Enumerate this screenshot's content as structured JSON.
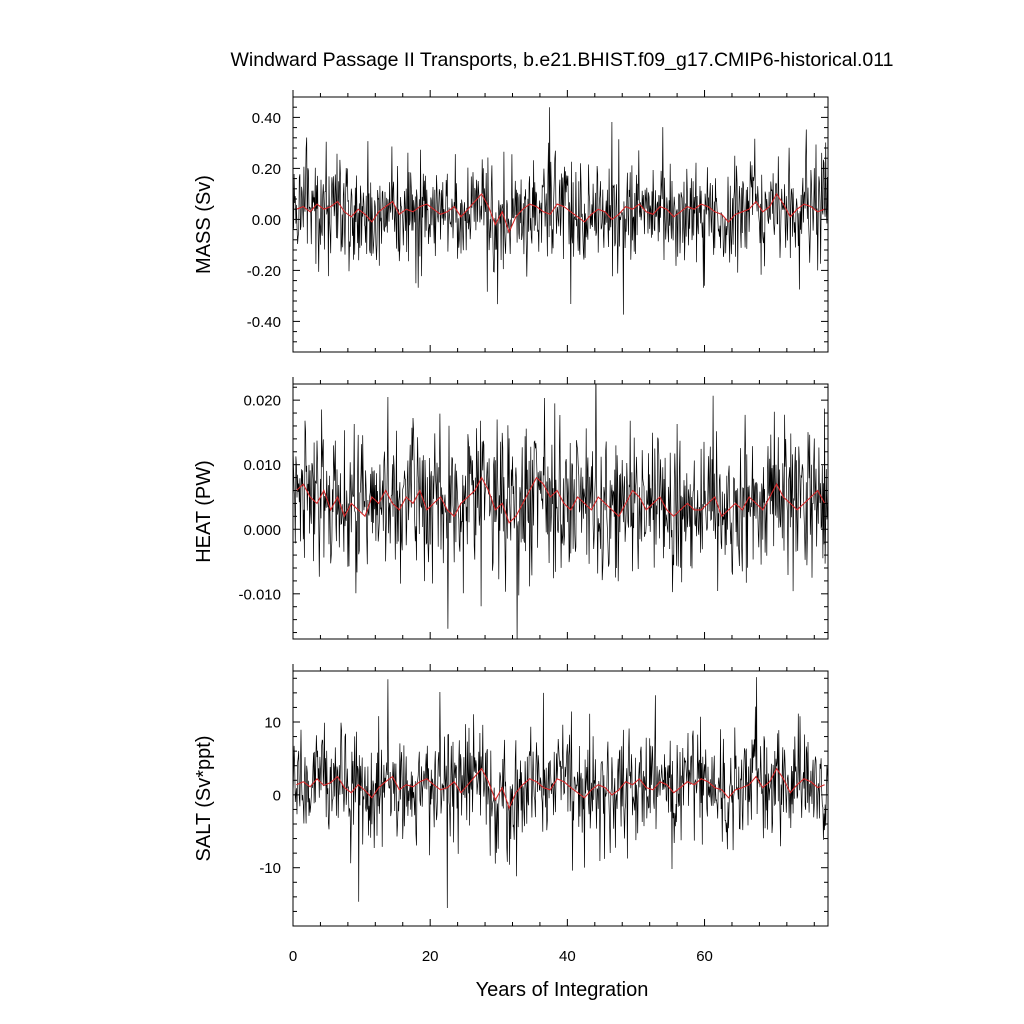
{
  "chart_data": {
    "type": "line",
    "title": "Windward Passage II Transports, b.e21.BHIST.f09_g17.CMIP6-historical.011",
    "xlabel": "Years of Integration",
    "xlim": [
      0,
      78
    ],
    "xticks": [
      0,
      20,
      40,
      60
    ],
    "xtick_labels": [
      "0",
      "20",
      "40",
      "60"
    ],
    "colors": {
      "monthly": "#000000",
      "annual": "#d62728"
    },
    "panels": [
      {
        "ylabel": "MASS (Sv)",
        "ylim": [
          -0.52,
          0.48
        ],
        "yticks": [
          0.4,
          0.2,
          0.0,
          -0.2,
          -0.4
        ],
        "ytick_labels": [
          "0.40",
          "0.20",
          "0.00",
          "-0.20",
          "-0.40"
        ],
        "monthly_mean": 0.03,
        "monthly_sd": 0.1,
        "annual_values": [
          0.04,
          0.05,
          0.03,
          0.06,
          0.04,
          0.05,
          0.07,
          0.03,
          0.01,
          0.04,
          0.02,
          -0.01,
          0.03,
          0.05,
          0.07,
          0.02,
          0.04,
          0.03,
          0.05,
          0.06,
          0.04,
          0.02,
          0.03,
          0.05,
          0.01,
          0.04,
          0.07,
          0.1,
          0.05,
          -0.02,
          0.03,
          -0.05,
          0.01,
          0.04,
          0.06,
          0.05,
          0.03,
          0.02,
          0.06,
          0.05,
          0.03,
          0.01,
          -0.01,
          0.02,
          0.04,
          0.03,
          0.0,
          0.02,
          0.05,
          0.04,
          0.06,
          0.03,
          0.02,
          0.05,
          0.04,
          0.01,
          0.03,
          0.05,
          0.04,
          0.06,
          0.05,
          0.03,
          0.02,
          -0.01,
          0.02,
          0.03,
          0.04,
          0.07,
          0.03,
          0.05,
          0.1,
          0.06,
          0.01,
          0.04,
          0.06,
          0.05,
          0.03,
          0.04
        ]
      },
      {
        "ylabel": "HEAT (PW)",
        "ylim": [
          -0.017,
          0.0225
        ],
        "yticks": [
          0.02,
          0.01,
          0.0,
          -0.01
        ],
        "ytick_labels": [
          "0.020",
          "0.010",
          "0.000",
          "-0.010"
        ],
        "monthly_mean": 0.004,
        "monthly_sd": 0.0055,
        "annual_values": [
          0.006,
          0.007,
          0.005,
          0.004,
          0.006,
          0.003,
          0.005,
          0.002,
          0.004,
          0.003,
          0.002,
          0.005,
          0.004,
          0.006,
          0.004,
          0.003,
          0.005,
          0.004,
          0.006,
          0.003,
          0.004,
          0.005,
          0.003,
          0.002,
          0.004,
          0.005,
          0.006,
          0.008,
          0.006,
          0.003,
          0.004,
          0.001,
          0.002,
          0.004,
          0.006,
          0.008,
          0.007,
          0.005,
          0.006,
          0.004,
          0.003,
          0.005,
          0.004,
          0.003,
          0.005,
          0.004,
          0.003,
          0.002,
          0.004,
          0.006,
          0.005,
          0.003,
          0.004,
          0.005,
          0.003,
          0.002,
          0.003,
          0.004,
          0.003,
          0.003,
          0.004,
          0.005,
          0.002,
          0.003,
          0.004,
          0.003,
          0.005,
          0.004,
          0.003,
          0.005,
          0.007,
          0.005,
          0.004,
          0.003,
          0.004,
          0.005,
          0.006,
          0.004
        ]
      },
      {
        "ylabel": "SALT (Sv*ppt)",
        "ylim": [
          -18,
          17
        ],
        "yticks": [
          10,
          0,
          -10
        ],
        "ytick_labels": [
          "10",
          "0",
          "-10"
        ],
        "monthly_mean": 1.0,
        "monthly_sd": 3.6,
        "annual_values": [
          1.4,
          1.8,
          1.1,
          2.2,
          1.3,
          1.7,
          2.5,
          1.0,
          0.3,
          1.4,
          0.6,
          -0.4,
          1.0,
          1.8,
          2.5,
          0.7,
          1.4,
          1.1,
          1.8,
          2.2,
          1.4,
          0.7,
          1.0,
          1.8,
          0.3,
          1.4,
          2.5,
          3.6,
          1.8,
          -0.7,
          1.0,
          -1.8,
          0.3,
          1.4,
          2.2,
          1.8,
          1.0,
          0.7,
          2.2,
          1.8,
          1.0,
          0.3,
          -0.4,
          0.7,
          1.4,
          1.0,
          0.0,
          0.7,
          1.8,
          1.4,
          2.2,
          1.0,
          0.7,
          1.8,
          1.4,
          0.3,
          1.0,
          1.8,
          1.4,
          2.2,
          1.8,
          1.0,
          0.7,
          -0.4,
          0.7,
          1.0,
          1.4,
          2.5,
          1.0,
          1.8,
          3.6,
          2.2,
          0.3,
          1.4,
          2.2,
          1.8,
          1.0,
          1.4
        ]
      }
    ]
  }
}
